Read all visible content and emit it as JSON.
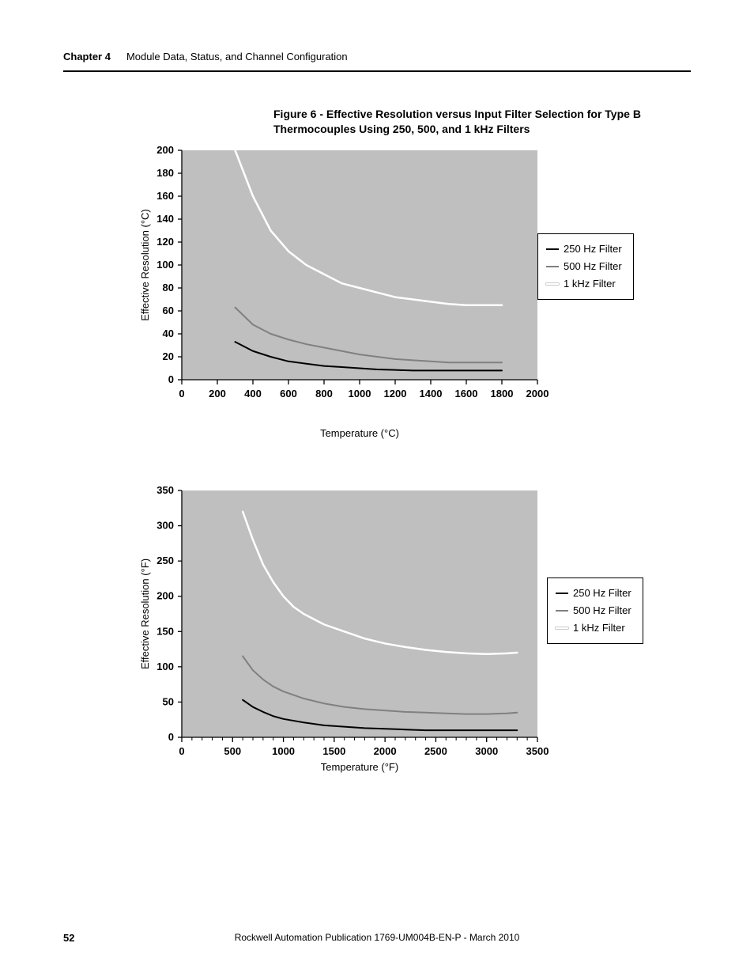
{
  "header": {
    "chapter": "Chapter 4",
    "title": "Module Data, Status, and Channel Configuration"
  },
  "figure_title": "Figure 6 - Effective Resolution versus Input Filter Selection for Type B Thermocouples Using 250, 500, and 1 kHz Filters",
  "footer": {
    "page": "52",
    "publication": "Rockwell Automation Publication 1769-UM004B-EN-P - March 2010"
  },
  "legend": {
    "items": [
      {
        "label": "250 Hz Filter",
        "color": "#000000"
      },
      {
        "label": "500 Hz Filter",
        "color": "#808080"
      },
      {
        "label": "1 kHz Filter",
        "color": "#ffffff"
      }
    ]
  },
  "chart1": {
    "type": "line",
    "plot_bg": "#bfbfbf",
    "grid_color": "#bfbfbf",
    "x": {
      "label": "Temperature (°C)",
      "min": 0,
      "max": 2000,
      "step": 200,
      "ticks": [
        0,
        200,
        400,
        600,
        800,
        1000,
        1200,
        1400,
        1600,
        1800,
        2000
      ]
    },
    "y": {
      "label": "Effective Resolution (°C)",
      "min": 0,
      "max": 200,
      "step": 20,
      "ticks": [
        0,
        20,
        40,
        60,
        80,
        100,
        120,
        140,
        160,
        180,
        200
      ]
    },
    "series": [
      {
        "name": "1 kHz Filter",
        "color": "#ffffff",
        "width": 2.5,
        "points": [
          [
            300,
            200
          ],
          [
            400,
            160
          ],
          [
            500,
            130
          ],
          [
            600,
            112
          ],
          [
            700,
            100
          ],
          [
            800,
            92
          ],
          [
            900,
            84
          ],
          [
            1000,
            80
          ],
          [
            1100,
            76
          ],
          [
            1200,
            72
          ],
          [
            1300,
            70
          ],
          [
            1400,
            68
          ],
          [
            1500,
            66
          ],
          [
            1600,
            65
          ],
          [
            1700,
            65
          ],
          [
            1800,
            65
          ]
        ]
      },
      {
        "name": "500 Hz Filter",
        "color": "#808080",
        "width": 2,
        "points": [
          [
            300,
            63
          ],
          [
            400,
            48
          ],
          [
            500,
            40
          ],
          [
            600,
            35
          ],
          [
            700,
            31
          ],
          [
            800,
            28
          ],
          [
            900,
            25
          ],
          [
            1000,
            22
          ],
          [
            1100,
            20
          ],
          [
            1200,
            18
          ],
          [
            1300,
            17
          ],
          [
            1400,
            16
          ],
          [
            1500,
            15
          ],
          [
            1600,
            15
          ],
          [
            1700,
            15
          ],
          [
            1800,
            15
          ]
        ]
      },
      {
        "name": "250 Hz Filter",
        "color": "#000000",
        "width": 2,
        "points": [
          [
            300,
            33
          ],
          [
            400,
            25
          ],
          [
            500,
            20
          ],
          [
            600,
            16
          ],
          [
            700,
            14
          ],
          [
            800,
            12
          ],
          [
            900,
            11
          ],
          [
            1000,
            10
          ],
          [
            1100,
            9
          ],
          [
            1200,
            8.5
          ],
          [
            1300,
            8
          ],
          [
            1400,
            8
          ],
          [
            1500,
            8
          ],
          [
            1600,
            8
          ],
          [
            1700,
            8
          ],
          [
            1800,
            8
          ]
        ]
      }
    ]
  },
  "chart2": {
    "type": "line",
    "plot_bg": "#bfbfbf",
    "grid_color": "#bfbfbf",
    "x": {
      "label": "Temperature (°F)",
      "min": 0,
      "max": 3500,
      "step": 500,
      "minor_step": 100,
      "ticks": [
        0,
        500,
        1000,
        1500,
        2000,
        2500,
        3000,
        3500
      ]
    },
    "y": {
      "label": "Effective Resolution (°F)",
      "min": 0,
      "max": 350,
      "step": 50,
      "ticks": [
        0,
        50,
        100,
        150,
        200,
        250,
        300,
        350
      ]
    },
    "series": [
      {
        "name": "1 kHz Filter",
        "color": "#ffffff",
        "width": 2.5,
        "points": [
          [
            600,
            320
          ],
          [
            700,
            280
          ],
          [
            800,
            245
          ],
          [
            900,
            220
          ],
          [
            1000,
            200
          ],
          [
            1100,
            185
          ],
          [
            1200,
            175
          ],
          [
            1400,
            160
          ],
          [
            1600,
            150
          ],
          [
            1800,
            140
          ],
          [
            2000,
            133
          ],
          [
            2200,
            128
          ],
          [
            2400,
            124
          ],
          [
            2600,
            121
          ],
          [
            2800,
            119
          ],
          [
            3000,
            118
          ],
          [
            3200,
            119
          ],
          [
            3300,
            120
          ]
        ]
      },
      {
        "name": "500 Hz Filter",
        "color": "#808080",
        "width": 2,
        "points": [
          [
            600,
            115
          ],
          [
            700,
            95
          ],
          [
            800,
            82
          ],
          [
            900,
            72
          ],
          [
            1000,
            65
          ],
          [
            1200,
            55
          ],
          [
            1400,
            48
          ],
          [
            1600,
            43
          ],
          [
            1800,
            40
          ],
          [
            2000,
            38
          ],
          [
            2200,
            36
          ],
          [
            2400,
            35
          ],
          [
            2600,
            34
          ],
          [
            2800,
            33
          ],
          [
            3000,
            33
          ],
          [
            3200,
            34
          ],
          [
            3300,
            35
          ]
        ]
      },
      {
        "name": "250 Hz Filter",
        "color": "#000000",
        "width": 2,
        "points": [
          [
            600,
            53
          ],
          [
            700,
            43
          ],
          [
            800,
            36
          ],
          [
            900,
            30
          ],
          [
            1000,
            26
          ],
          [
            1200,
            21
          ],
          [
            1400,
            17
          ],
          [
            1600,
            15
          ],
          [
            1800,
            13
          ],
          [
            2000,
            12
          ],
          [
            2200,
            11
          ],
          [
            2400,
            10
          ],
          [
            2600,
            10
          ],
          [
            2800,
            10
          ],
          [
            3000,
            10
          ],
          [
            3200,
            10
          ],
          [
            3300,
            10
          ]
        ]
      }
    ]
  }
}
